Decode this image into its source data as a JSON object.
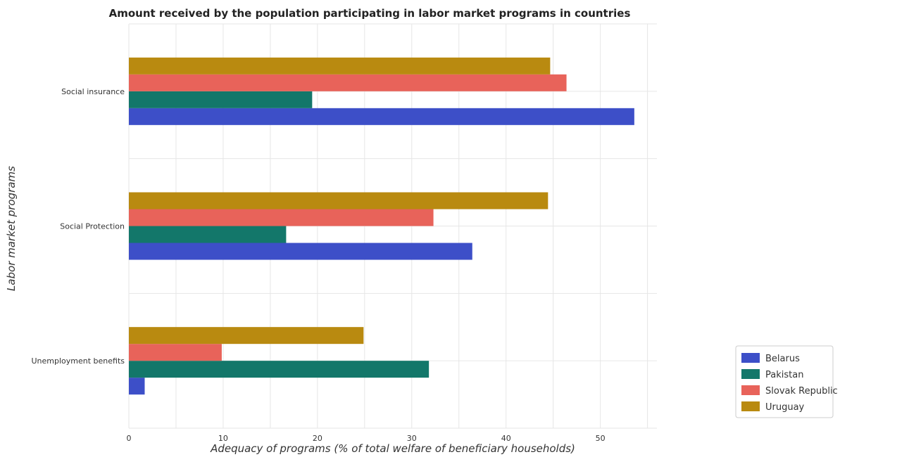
{
  "chart_data": {
    "type": "bar",
    "orientation": "horizontal",
    "title": "Amount received by the population participating in labor market programs in countries",
    "xlabel": "Adequacy of programs (% of total welfare of beneficiary households)",
    "ylabel": "Labor market programs",
    "xlim": [
      0,
      56
    ],
    "xticks": [
      0,
      10,
      20,
      30,
      40,
      50
    ],
    "grid": true,
    "legend_position": "bottom-right",
    "categories": [
      "Social insurance",
      "Social Protection",
      "Unemployment benefits"
    ],
    "series": [
      {
        "name": "Belarus",
        "color": "#3d4fc8",
        "values": [
          53.6,
          36.42,
          1.68
        ]
      },
      {
        "name": "Pakistan",
        "color": "#13776a",
        "values": [
          19.44,
          16.68,
          31.82
        ]
      },
      {
        "name": "Slovak Republic",
        "color": "#e8635a",
        "values": [
          46.41,
          32.3,
          9.85
        ]
      },
      {
        "name": "Uruguay",
        "color": "#b98a10",
        "values": [
          44.68,
          44.45,
          24.89
        ]
      }
    ]
  }
}
